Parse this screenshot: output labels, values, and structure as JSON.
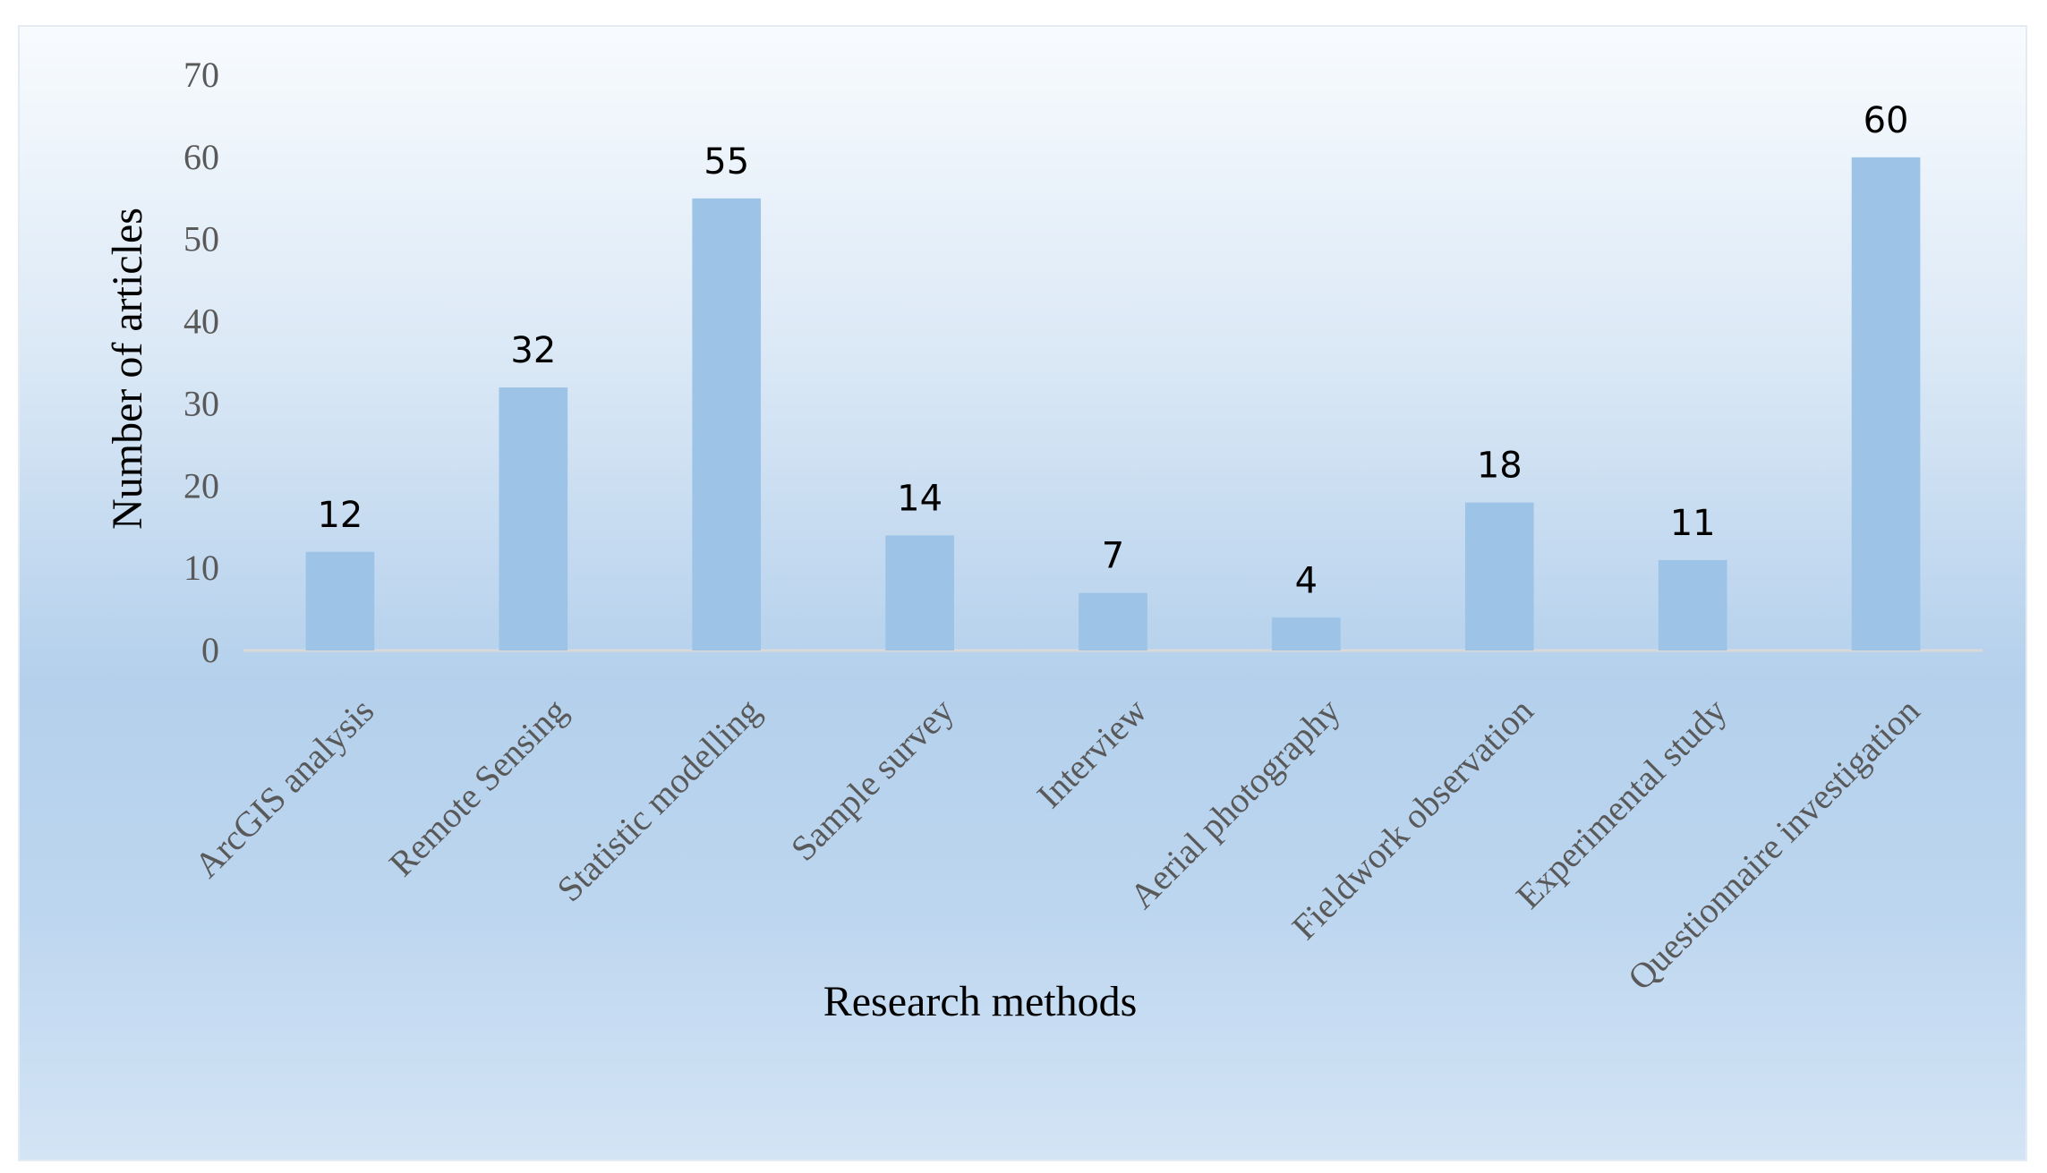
{
  "chart_data": {
    "type": "bar",
    "categories": [
      "ArcGIS analysis",
      "Remote Sensing",
      "Statistic modelling",
      "Sample survey",
      "Interview",
      "Aerial photography",
      "Fieldwork observation",
      "Experimental study",
      "Questionnaire investigation"
    ],
    "values": [
      12,
      32,
      55,
      14,
      7,
      4,
      18,
      11,
      60
    ],
    "xlabel": "Research methods",
    "ylabel": "Number of articles",
    "ylim": [
      0,
      70
    ],
    "yticks": [
      0,
      10,
      20,
      30,
      40,
      50,
      60,
      70
    ],
    "grid": false,
    "data_labels": true,
    "bar_color": "#9dc3e6",
    "baseline_color": "#d9d9d9"
  }
}
